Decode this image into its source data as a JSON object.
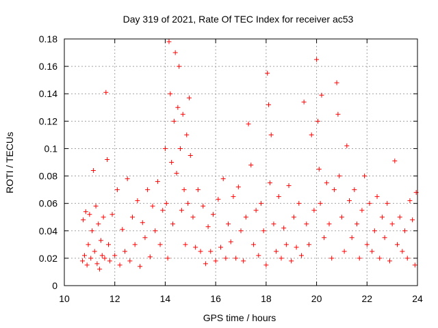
{
  "chart_data": {
    "type": "scatter",
    "title": "Day 319 of 2021, Rate Of TEC Index for receiver ac53",
    "xlabel": "GPS time / hours",
    "ylabel": "ROTI / TECUs",
    "xlim": [
      10,
      24
    ],
    "ylim": [
      0,
      0.18
    ],
    "x_ticks": [
      10,
      12,
      14,
      16,
      18,
      20,
      22,
      24
    ],
    "x_tick_labels": [
      "10",
      "12",
      "14",
      "16",
      "18",
      "20",
      "22",
      "24"
    ],
    "y_ticks": [
      0,
      0.02,
      0.04,
      0.06,
      0.08,
      0.1,
      0.12,
      0.14,
      0.16,
      0.18
    ],
    "y_tick_labels": [
      "0",
      "0.02",
      "0.04",
      "0.06",
      "0.08",
      "0.1",
      "0.12",
      "0.14",
      "0.16",
      "0.18"
    ],
    "grid": true,
    "marker": "+",
    "marker_color": "#ff0000",
    "series": [
      {
        "name": "ROTI",
        "x": [
          10.72,
          10.75,
          10.8,
          10.85,
          10.9,
          10.95,
          11.0,
          11.05,
          11.1,
          11.15,
          11.2,
          11.25,
          11.3,
          11.35,
          11.4,
          11.45,
          11.5,
          11.55,
          11.6,
          11.65,
          11.7,
          11.75,
          11.8,
          11.9,
          12.0,
          12.1,
          12.2,
          12.3,
          12.4,
          12.5,
          12.6,
          12.7,
          12.8,
          12.9,
          13.0,
          13.1,
          13.2,
          13.3,
          13.4,
          13.5,
          13.6,
          13.7,
          13.8,
          13.9,
          14.0,
          14.05,
          14.1,
          14.15,
          14.2,
          14.25,
          14.3,
          14.35,
          14.4,
          14.45,
          14.5,
          14.55,
          14.6,
          14.65,
          14.7,
          14.75,
          14.8,
          14.85,
          14.9,
          14.95,
          15.0,
          15.1,
          15.2,
          15.3,
          15.4,
          15.5,
          15.6,
          15.7,
          15.8,
          15.9,
          16.0,
          16.1,
          16.2,
          16.3,
          16.4,
          16.5,
          16.6,
          16.7,
          16.8,
          16.9,
          17.0,
          17.1,
          17.2,
          17.3,
          17.4,
          17.5,
          17.6,
          17.7,
          17.8,
          17.9,
          18.0,
          18.05,
          18.1,
          18.15,
          18.2,
          18.3,
          18.4,
          18.5,
          18.6,
          18.7,
          18.8,
          18.9,
          19.0,
          19.1,
          19.2,
          19.3,
          19.4,
          19.5,
          19.6,
          19.7,
          19.8,
          19.9,
          20.0,
          20.05,
          20.1,
          20.15,
          20.2,
          20.3,
          20.4,
          20.5,
          20.6,
          20.7,
          20.8,
          20.85,
          20.9,
          21.0,
          21.1,
          21.2,
          21.3,
          21.4,
          21.5,
          21.6,
          21.7,
          21.8,
          21.9,
          22.0,
          22.1,
          22.2,
          22.3,
          22.4,
          22.5,
          22.6,
          22.7,
          22.8,
          22.9,
          23.0,
          23.1,
          23.2,
          23.3,
          23.4,
          23.5,
          23.6,
          23.7,
          23.8,
          23.9,
          23.95
        ],
        "y": [
          0.018,
          0.048,
          0.022,
          0.054,
          0.015,
          0.03,
          0.052,
          0.02,
          0.04,
          0.084,
          0.025,
          0.058,
          0.016,
          0.045,
          0.012,
          0.033,
          0.022,
          0.05,
          0.02,
          0.141,
          0.092,
          0.03,
          0.018,
          0.052,
          0.022,
          0.07,
          0.015,
          0.041,
          0.025,
          0.078,
          0.018,
          0.05,
          0.03,
          0.062,
          0.014,
          0.046,
          0.035,
          0.07,
          0.021,
          0.058,
          0.04,
          0.076,
          0.03,
          0.055,
          0.1,
          0.06,
          0.02,
          0.178,
          0.14,
          0.09,
          0.045,
          0.12,
          0.17,
          0.082,
          0.13,
          0.16,
          0.1,
          0.055,
          0.125,
          0.07,
          0.03,
          0.11,
          0.06,
          0.137,
          0.095,
          0.05,
          0.028,
          0.07,
          0.025,
          0.058,
          0.016,
          0.043,
          0.025,
          0.052,
          0.018,
          0.063,
          0.028,
          0.078,
          0.02,
          0.045,
          0.032,
          0.065,
          0.02,
          0.072,
          0.04,
          0.018,
          0.05,
          0.118,
          0.088,
          0.03,
          0.055,
          0.022,
          0.06,
          0.04,
          0.015,
          0.155,
          0.132,
          0.075,
          0.11,
          0.045,
          0.025,
          0.065,
          0.02,
          0.042,
          0.03,
          0.073,
          0.018,
          0.05,
          0.028,
          0.06,
          0.022,
          0.134,
          0.045,
          0.03,
          0.11,
          0.055,
          0.165,
          0.12,
          0.085,
          0.06,
          0.139,
          0.035,
          0.075,
          0.045,
          0.02,
          0.07,
          0.148,
          0.125,
          0.08,
          0.05,
          0.025,
          0.102,
          0.062,
          0.035,
          0.07,
          0.045,
          0.02,
          0.055,
          0.08,
          0.03,
          0.06,
          0.025,
          0.04,
          0.065,
          0.02,
          0.05,
          0.035,
          0.06,
          0.018,
          0.045,
          0.091,
          0.03,
          0.05,
          0.025,
          0.04,
          0.02,
          0.062,
          0.048,
          0.015,
          0.068
        ]
      }
    ]
  }
}
